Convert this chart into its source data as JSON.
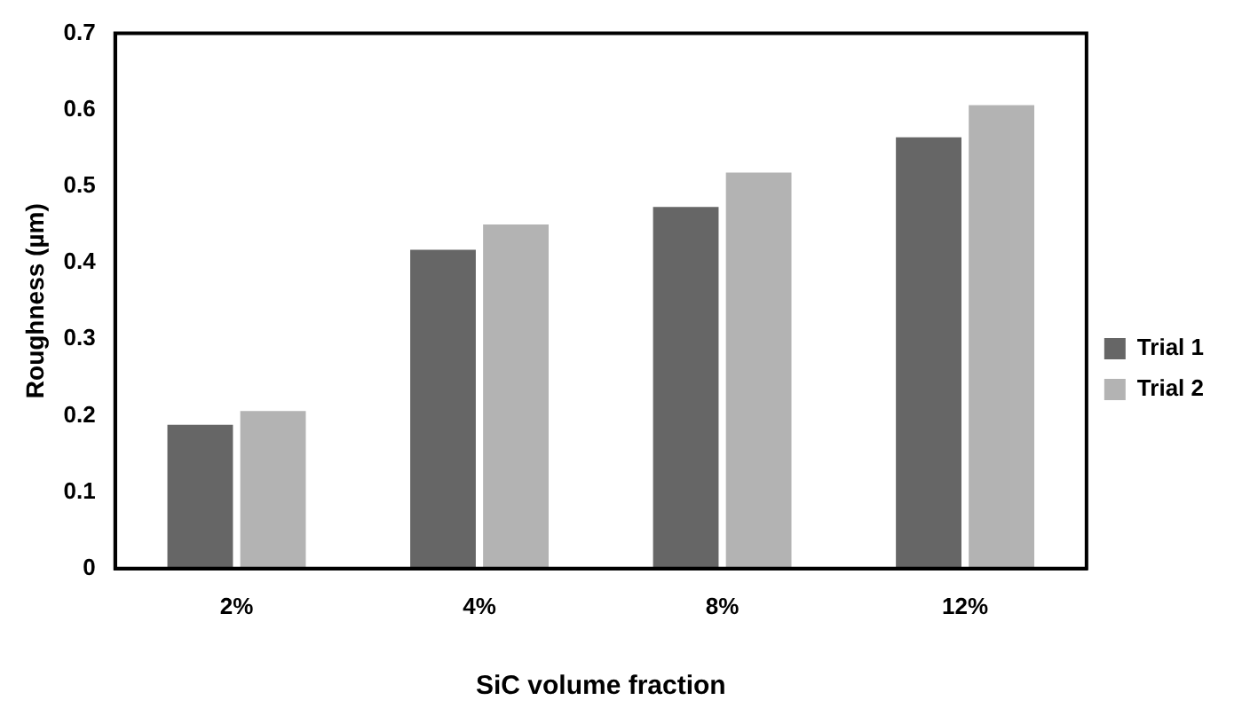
{
  "chart_data": {
    "type": "bar",
    "xlabel": "SiC volume fraction",
    "ylabel": "Roughness (µm)",
    "categories": [
      "2%",
      "4%",
      "8%",
      "12%"
    ],
    "series": [
      {
        "name": "Trial 1",
        "color": "#666666",
        "values": [
          0.188,
          0.417,
          0.473,
          0.564
        ]
      },
      {
        "name": "Trial 2",
        "color": "#b3b3b3",
        "values": [
          0.206,
          0.45,
          0.518,
          0.606
        ]
      }
    ],
    "ylim": [
      0,
      0.7
    ],
    "yticks": [
      0,
      0.1,
      0.2,
      0.3,
      0.4,
      0.5,
      0.6,
      0.7
    ],
    "grid": false,
    "legend": "right"
  }
}
